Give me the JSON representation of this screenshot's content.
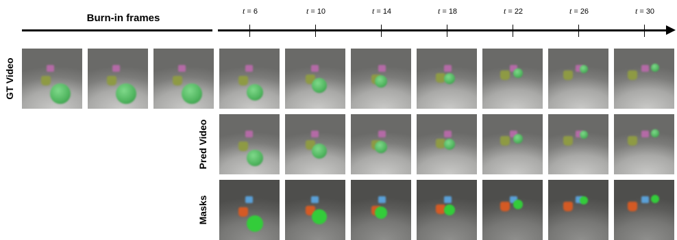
{
  "header": {
    "burn_in_label": "Burn-in frames",
    "time_prefix": "t",
    "time_steps": [
      "6",
      "10",
      "14",
      "18",
      "22",
      "26",
      "30"
    ]
  },
  "rows": [
    {
      "label": "GT Video",
      "start_frame": 0
    },
    {
      "label": "Pred Video",
      "start_frame": 3
    },
    {
      "label": "Masks",
      "start_frame": 3
    }
  ],
  "colors": {
    "cube": "#b46aa6",
    "cylinder": "#8e9a44",
    "sphere": "#4fb45e",
    "mask_cube": "#5aa0d8",
    "mask_cylinder": "#d45a24",
    "mask_sphere": "#33cc3a"
  }
}
